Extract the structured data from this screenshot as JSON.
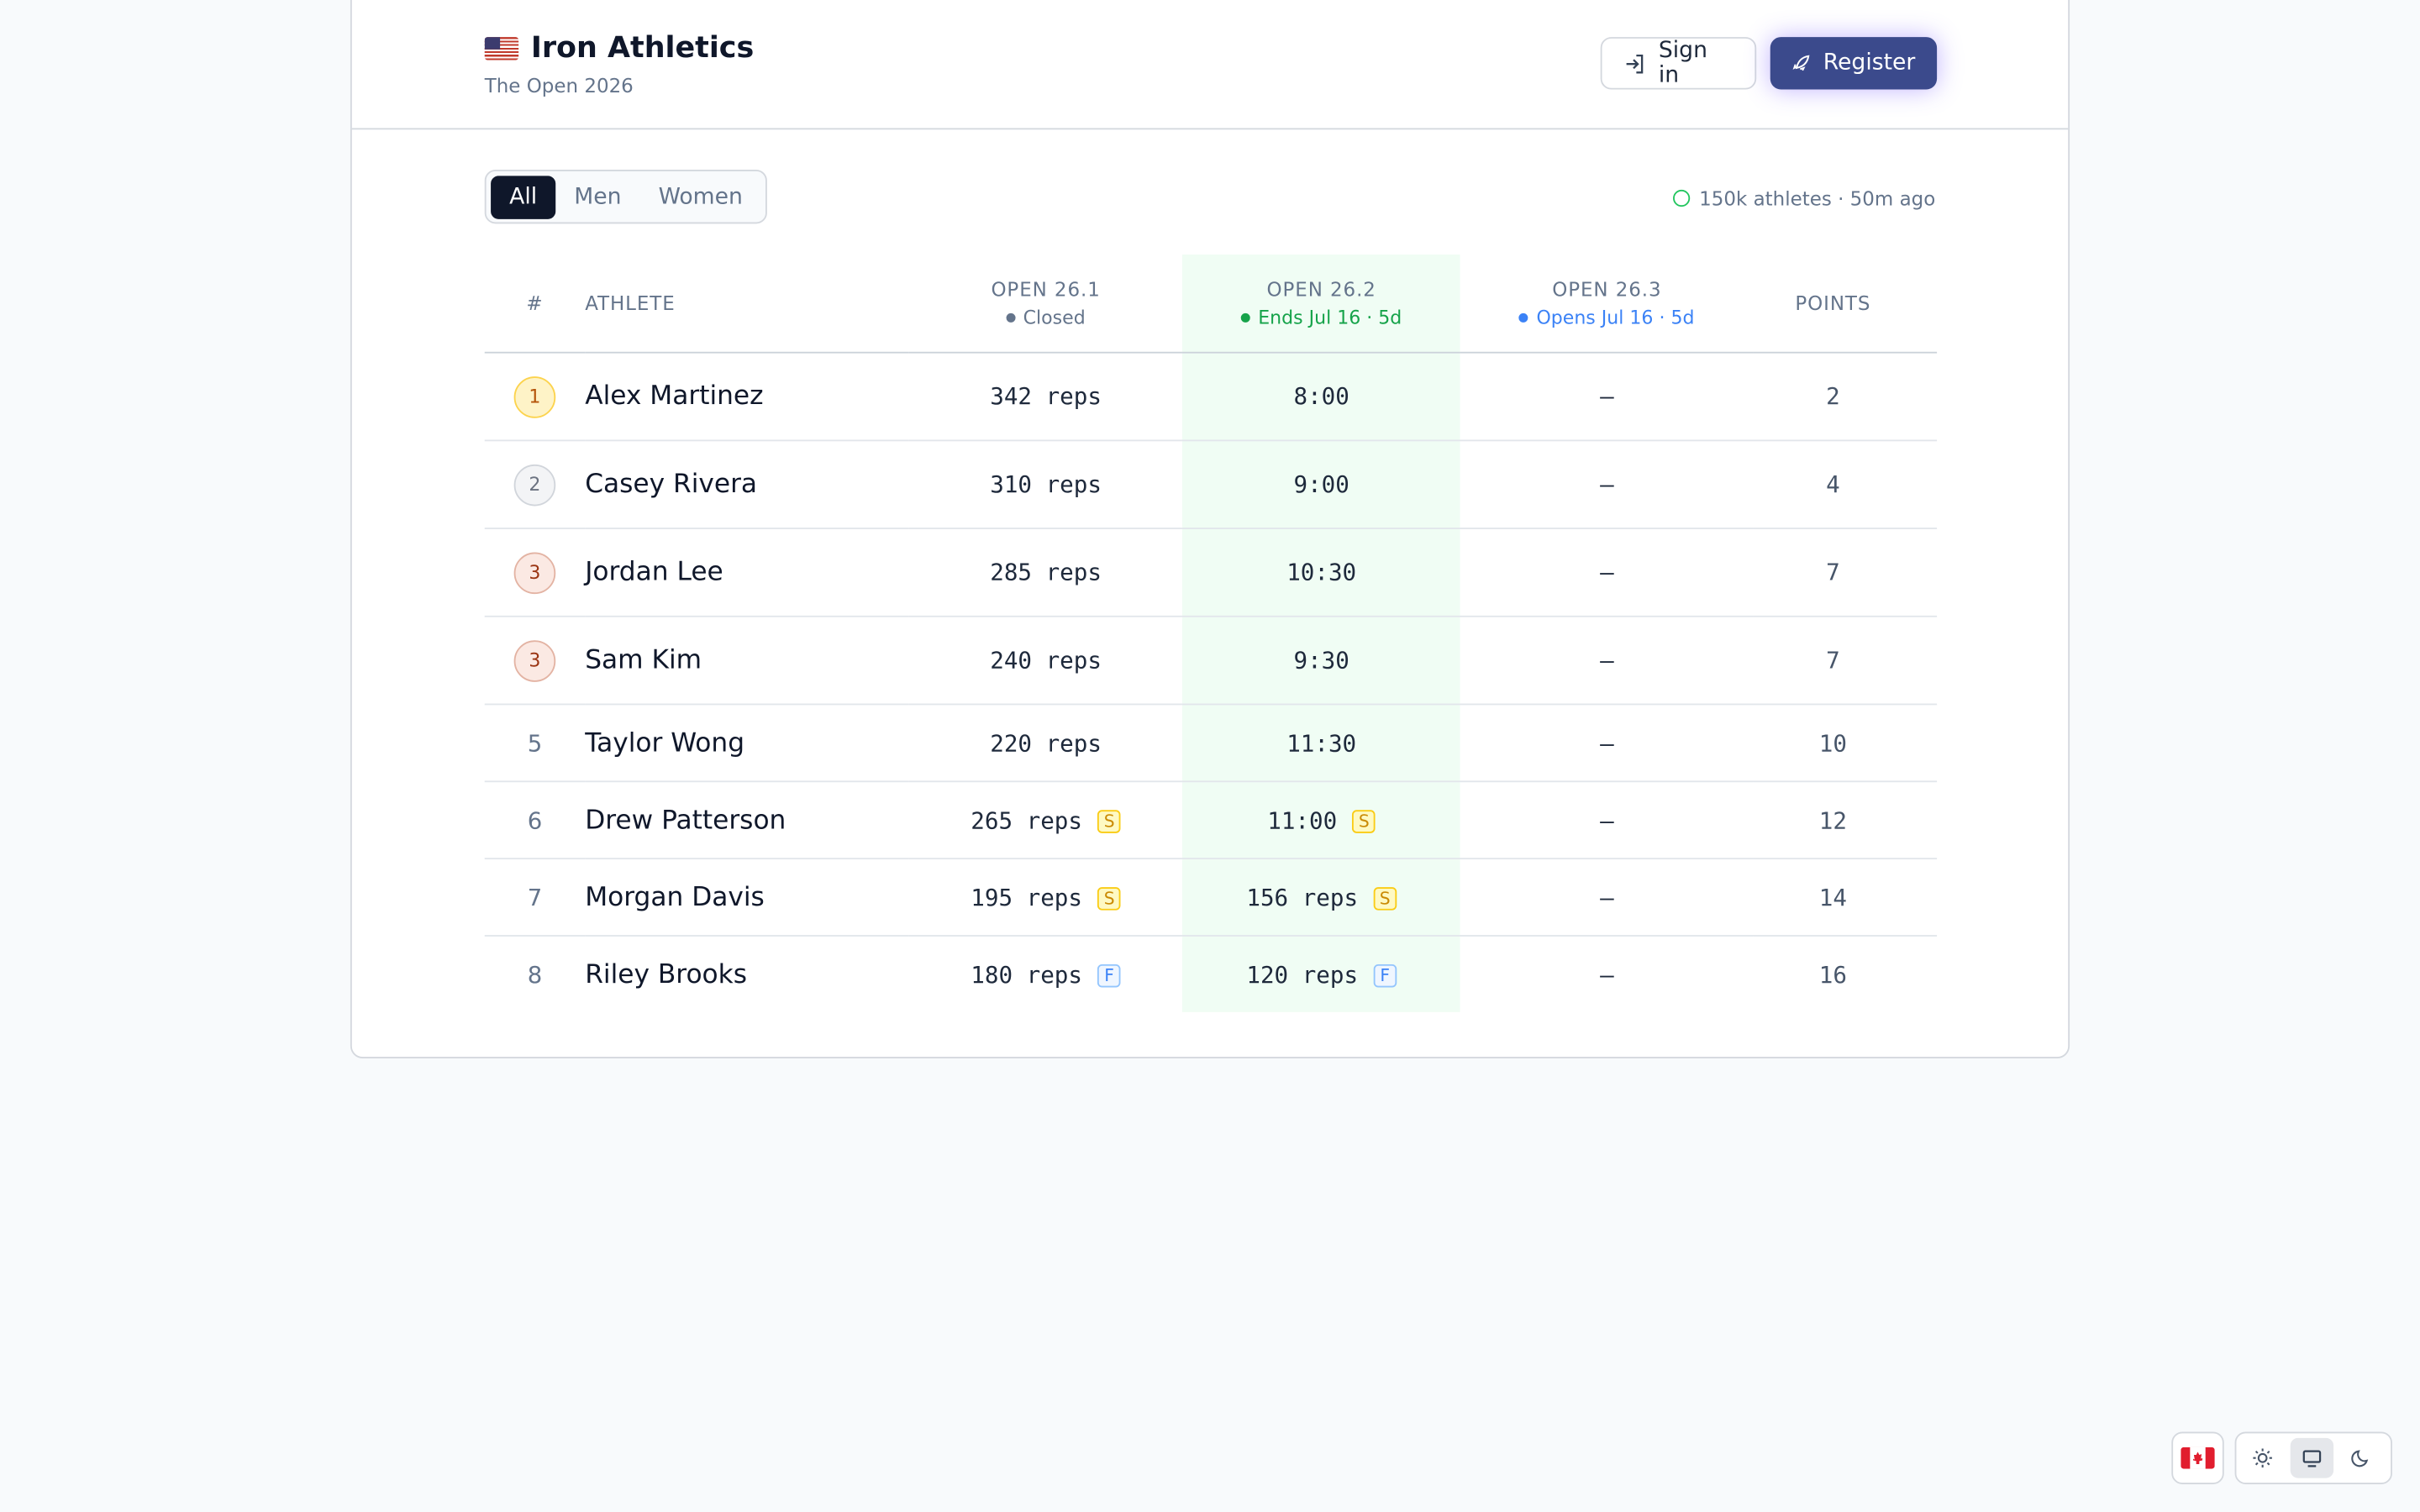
{
  "header": {
    "title": "Iron Athletics",
    "subtitle": "The Open 2026",
    "sign_in": "Sign in",
    "register": "Register"
  },
  "filters": {
    "options": [
      "All",
      "Men",
      "Women"
    ],
    "active": 0,
    "status": "150k athletes · 50m ago"
  },
  "table": {
    "columns": [
      {
        "label": "#"
      },
      {
        "label": "ATHLETE"
      },
      {
        "label": "OPEN 26.1",
        "status": "Closed"
      },
      {
        "label": "OPEN 26.2",
        "status": "Ends Jul 16 · 5d"
      },
      {
        "label": "OPEN 26.3",
        "status": "Opens Jul 16 · 5d"
      },
      {
        "label": "POINTS"
      }
    ],
    "rows": [
      {
        "rank": "1",
        "athlete": "Alex Martinez",
        "scores": [
          {
            "score": "342 reps"
          },
          {
            "score": "8:00"
          },
          {
            "score": "–"
          }
        ],
        "points": "2"
      },
      {
        "rank": "2",
        "athlete": "Casey Rivera",
        "scores": [
          {
            "score": "310 reps"
          },
          {
            "score": "9:00"
          },
          {
            "score": "–"
          }
        ],
        "points": "4"
      },
      {
        "rank": "3",
        "athlete": "Jordan Lee",
        "scores": [
          {
            "score": "285 reps"
          },
          {
            "score": "10:30"
          },
          {
            "score": "–"
          }
        ],
        "points": "7"
      },
      {
        "rank": "3",
        "athlete": "Sam Kim",
        "scores": [
          {
            "score": "240 reps"
          },
          {
            "score": "9:30"
          },
          {
            "score": "–"
          }
        ],
        "points": "7"
      },
      {
        "rank": "5",
        "athlete": "Taylor Wong",
        "scores": [
          {
            "score": "220 reps"
          },
          {
            "score": "11:30"
          },
          {
            "score": "–"
          }
        ],
        "points": "10"
      },
      {
        "rank": "6",
        "athlete": "Drew Patterson",
        "scores": [
          {
            "score": "265 reps",
            "badge": "S"
          },
          {
            "score": "11:00",
            "badge": "S"
          },
          {
            "score": "–"
          }
        ],
        "points": "12"
      },
      {
        "rank": "7",
        "athlete": "Morgan Davis",
        "scores": [
          {
            "score": "195 reps",
            "badge": "S"
          },
          {
            "score": "156 reps",
            "badge": "S"
          },
          {
            "score": "–"
          }
        ],
        "points": "14"
      },
      {
        "rank": "8",
        "athlete": "Riley Brooks",
        "scores": [
          {
            "score": "180 reps",
            "badge": "F"
          },
          {
            "score": "120 reps",
            "badge": "F"
          },
          {
            "score": "–"
          }
        ],
        "points": "16"
      }
    ]
  }
}
